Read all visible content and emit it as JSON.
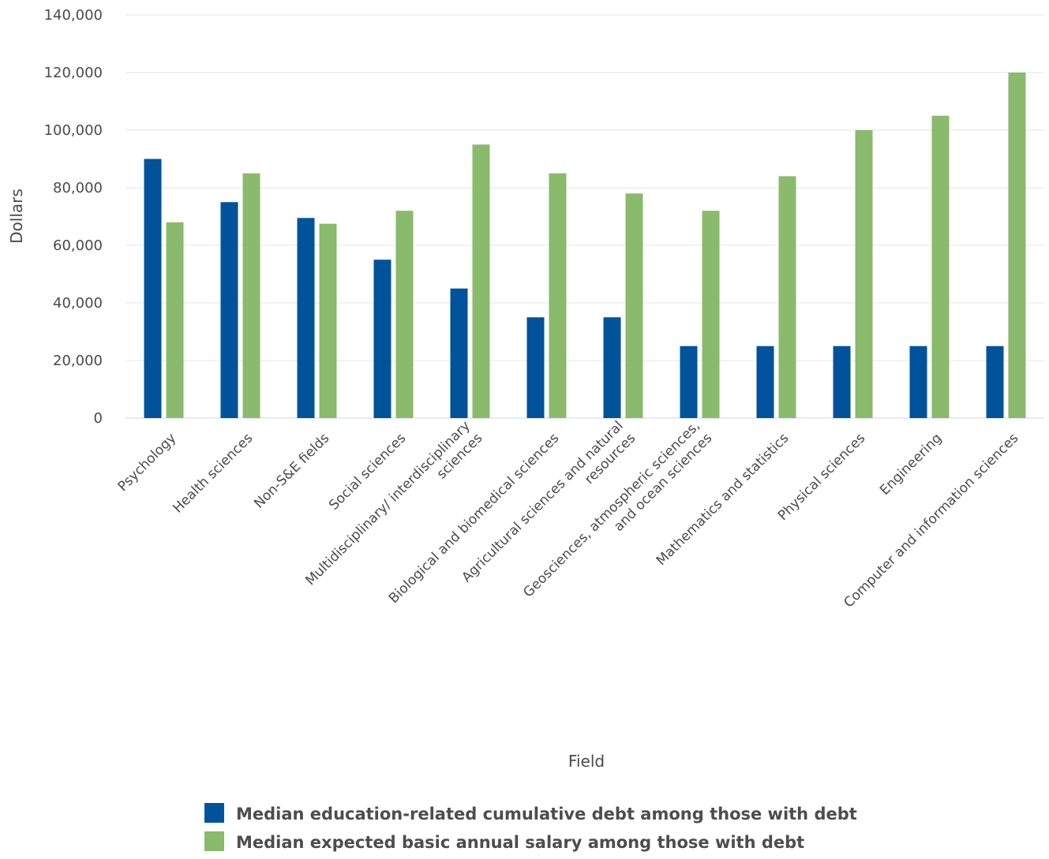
{
  "chart_data": {
    "type": "bar",
    "xlabel": "Field",
    "ylabel": "Dollars",
    "ylim": [
      0,
      140000
    ],
    "yticks": [
      0,
      20000,
      40000,
      60000,
      80000,
      100000,
      120000,
      140000
    ],
    "ytick_labels": [
      "0",
      "20,000",
      "40,000",
      "60,000",
      "80,000",
      "100,000",
      "120,000",
      "140,000"
    ],
    "grid": true,
    "legend_position": "bottom",
    "categories": [
      [
        "Psychology"
      ],
      [
        "Health sciences"
      ],
      [
        "Non-S&E fields"
      ],
      [
        "Social sciences"
      ],
      [
        "Multidisciplinary/ interdisciplinary",
        "sciences"
      ],
      [
        "Biological and biomedical sciences"
      ],
      [
        "Agricultural sciences and natural",
        "resources"
      ],
      [
        "Geosciences, atmospheric sciences,",
        "and ocean sciences"
      ],
      [
        "Mathematics and statistics"
      ],
      [
        "Physical sciences"
      ],
      [
        "Engineering"
      ],
      [
        "Computer and information sciences"
      ]
    ],
    "series": [
      {
        "name": "Median education-related cumulative debt among those with debt",
        "color": "#00529b",
        "values": [
          90000,
          75000,
          69500,
          55000,
          45000,
          35000,
          35000,
          25000,
          25000,
          25000,
          25000,
          25000
        ]
      },
      {
        "name": "Median expected basic annual salary among those with debt",
        "color": "#8aba6b",
        "values": [
          68000,
          85000,
          67500,
          72000,
          95000,
          85000,
          78000,
          72000,
          84000,
          100000,
          105000,
          120000
        ]
      }
    ]
  },
  "colors": {
    "grid": "#e6e6e6",
    "baseline": "#ccd6eb",
    "text": "#4a4a4a"
  }
}
